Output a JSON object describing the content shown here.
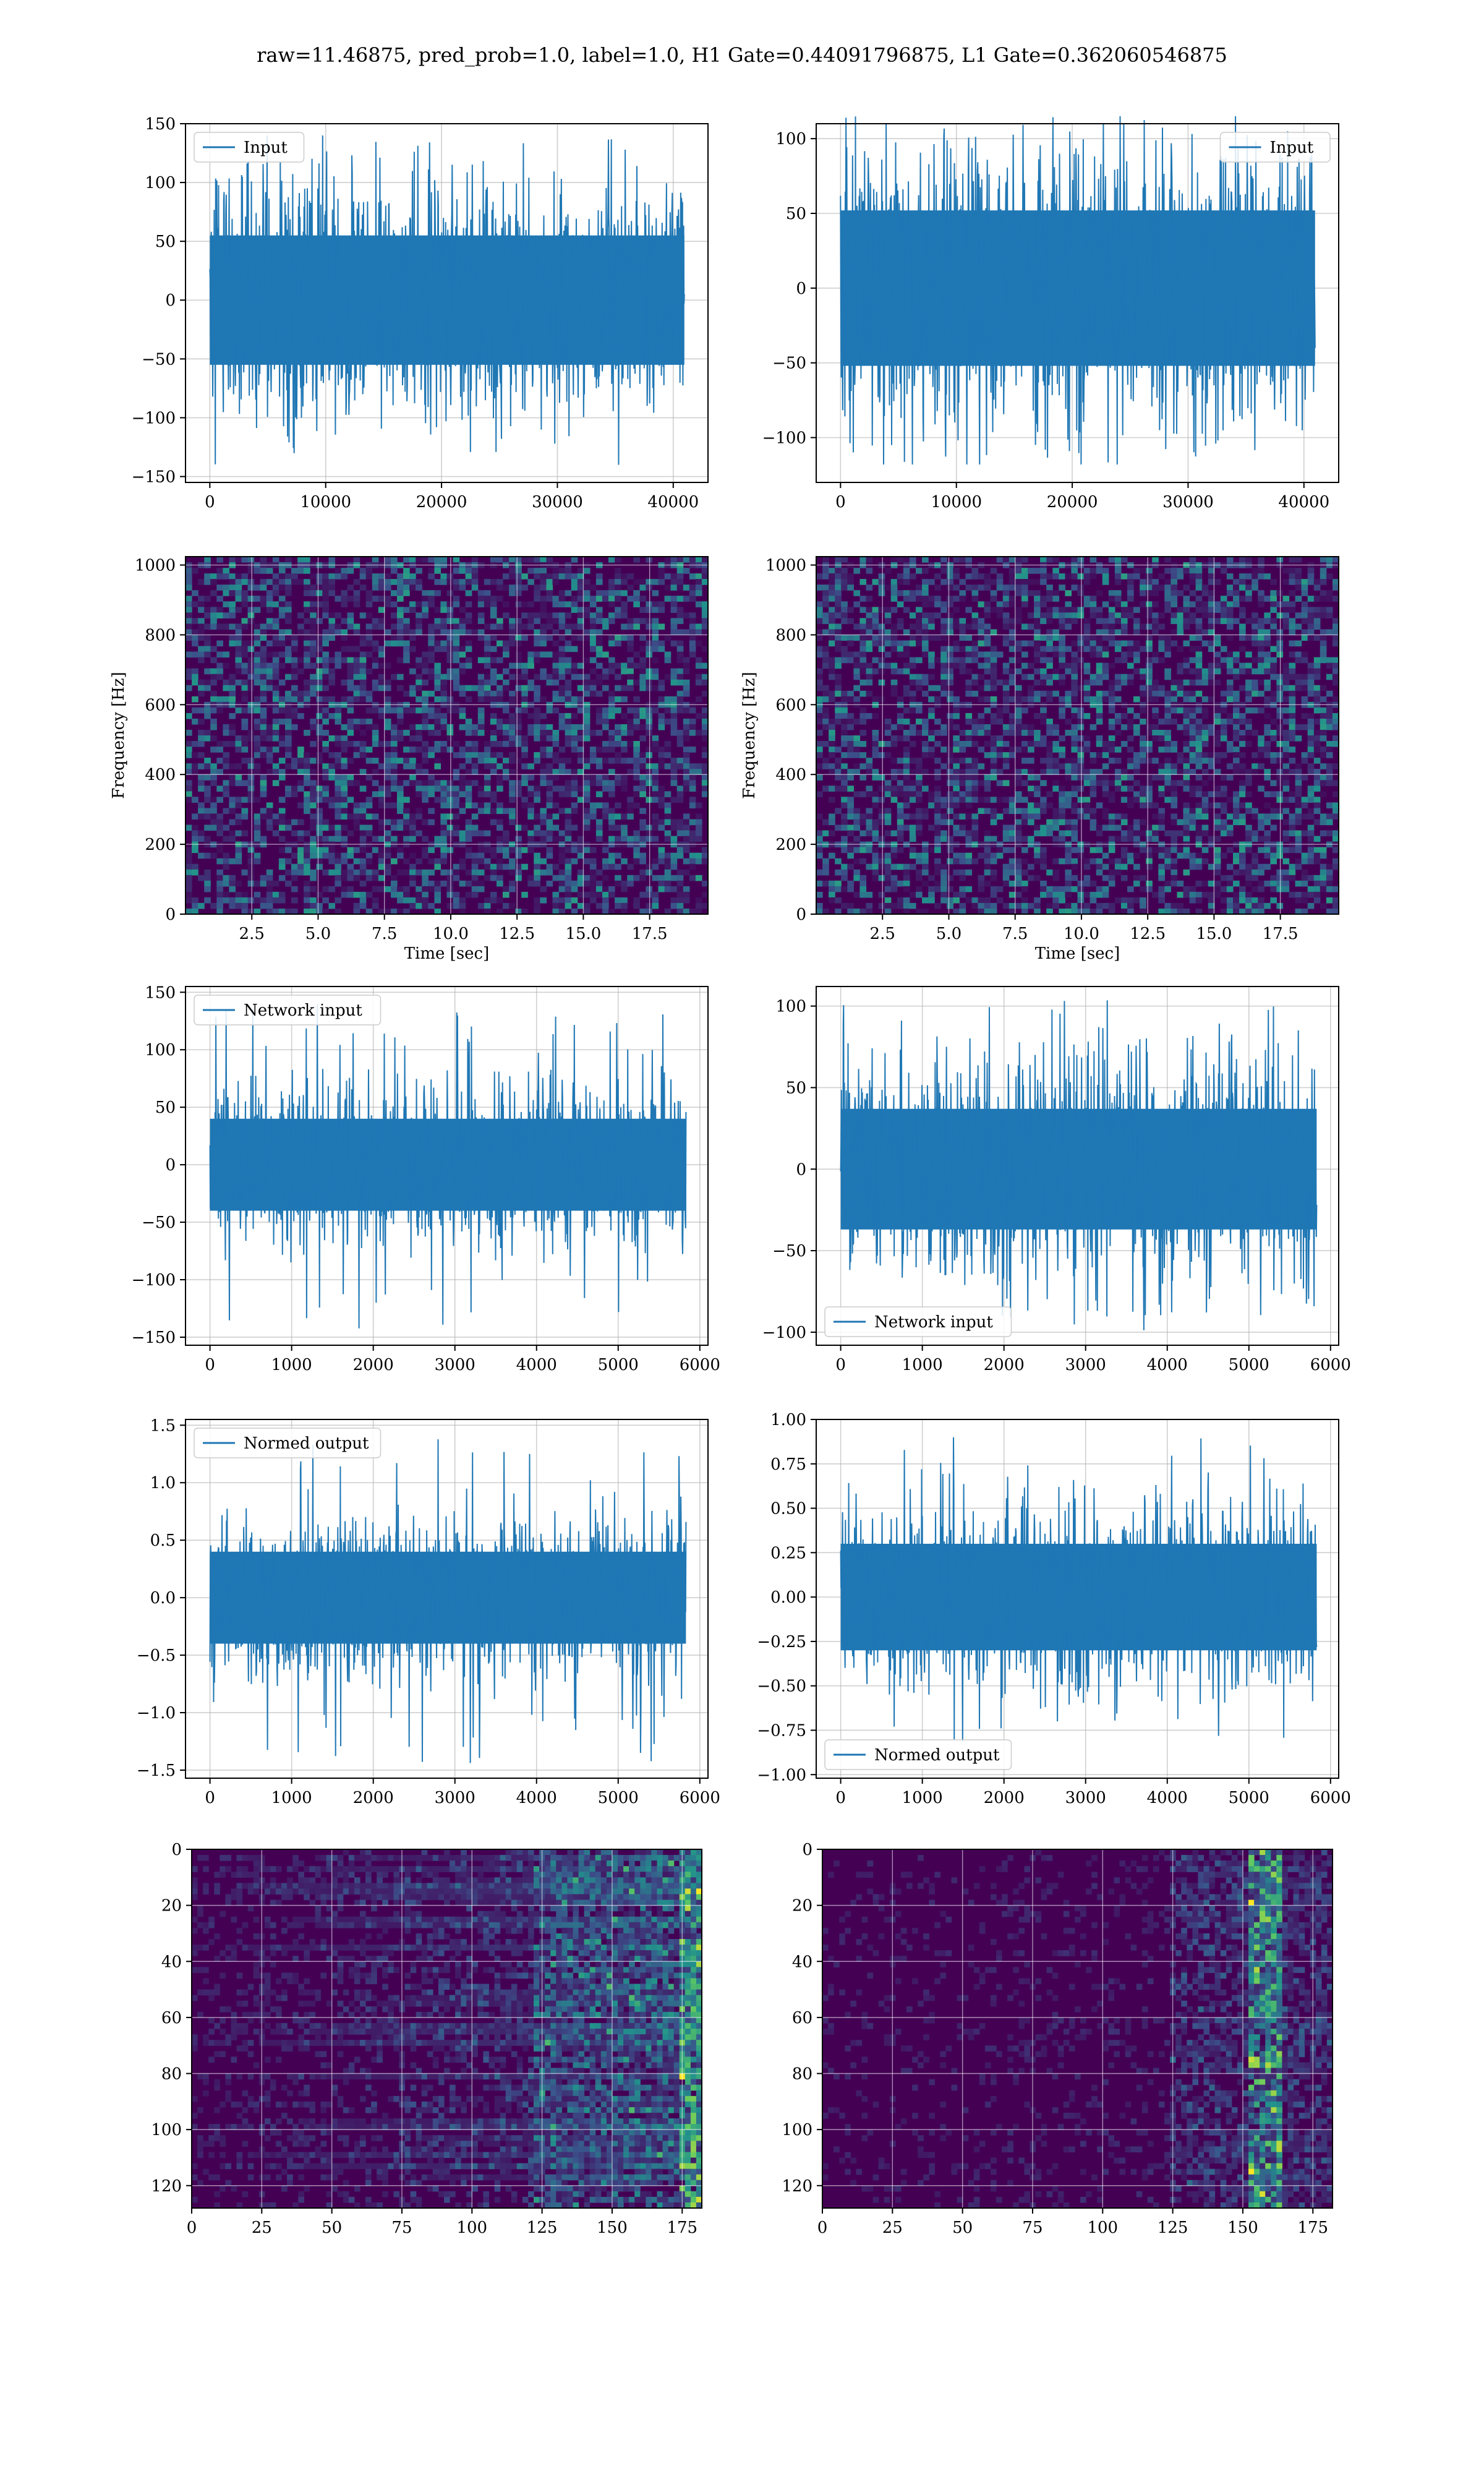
{
  "page": {
    "title": "raw=11.46875, pred_prob=1.0, label=1.0, H1 Gate=0.44091796875, L1 Gate=0.362060546875"
  },
  "colors": {
    "line": "#1f77b4",
    "grid": "#b0b0b0",
    "viridis_dark": "#440154",
    "viridis_mid": "#21918c",
    "viridis_bright": "#5ec962",
    "viridis_top": "#fde725"
  },
  "chart_data": [
    {
      "id": "h1-input",
      "type": "line",
      "series": [
        {
          "name": "Input",
          "x_range": [
            0,
            40960
          ],
          "amplitude": 55,
          "peak_range": [
            -140,
            140
          ]
        }
      ],
      "xlim": [
        -2100,
        43000
      ],
      "ylim": [
        -155,
        150
      ],
      "xticks": [
        0,
        10000,
        20000,
        30000,
        40000
      ],
      "xtick_labels": [
        "0",
        "10000",
        "20000",
        "30000",
        "40000"
      ],
      "yticks": [
        -150,
        -100,
        -50,
        0,
        50,
        100,
        150
      ],
      "ytick_labels": [
        "−150",
        "−100",
        "−50",
        "0",
        "50",
        "100",
        "150"
      ],
      "legend": "top-left",
      "grid": true,
      "xlabel": "",
      "ylabel": ""
    },
    {
      "id": "l1-input",
      "type": "line",
      "series": [
        {
          "name": "Input",
          "x_range": [
            0,
            40960
          ],
          "amplitude": 52,
          "peak_range": [
            -118,
            115
          ]
        }
      ],
      "xlim": [
        -2100,
        43000
      ],
      "ylim": [
        -130,
        110
      ],
      "xticks": [
        0,
        10000,
        20000,
        30000,
        40000
      ],
      "xtick_labels": [
        "0",
        "10000",
        "20000",
        "30000",
        "40000"
      ],
      "yticks": [
        -100,
        -50,
        0,
        50,
        100
      ],
      "ytick_labels": [
        "−100",
        "−50",
        "0",
        "50",
        "100"
      ],
      "legend": "top-right",
      "grid": true,
      "xlabel": "",
      "ylabel": ""
    },
    {
      "id": "h1-spectrogram",
      "type": "heatmap",
      "xlim": [
        0,
        19.7
      ],
      "ylim": [
        0,
        1024
      ],
      "xticks": [
        2.5,
        5.0,
        7.5,
        10.0,
        12.5,
        15.0,
        17.5
      ],
      "xtick_labels": [
        "2.5",
        "5.0",
        "7.5",
        "10.0",
        "12.5",
        "15.0",
        "17.5"
      ],
      "yticks": [
        0,
        200,
        400,
        600,
        800,
        1000
      ],
      "ytick_labels": [
        "0",
        "200",
        "400",
        "600",
        "800",
        "1000"
      ],
      "xlabel": "Time [sec]",
      "ylabel": "Frequency [Hz]",
      "grid": true
    },
    {
      "id": "l1-spectrogram",
      "type": "heatmap",
      "xlim": [
        0,
        19.7
      ],
      "ylim": [
        0,
        1024
      ],
      "xticks": [
        2.5,
        5.0,
        7.5,
        10.0,
        12.5,
        15.0,
        17.5
      ],
      "xtick_labels": [
        "2.5",
        "5.0",
        "7.5",
        "10.0",
        "12.5",
        "15.0",
        "17.5"
      ],
      "yticks": [
        0,
        200,
        400,
        600,
        800,
        1000
      ],
      "ytick_labels": [
        "0",
        "200",
        "400",
        "600",
        "800",
        "1000"
      ],
      "xlabel": "Time [sec]",
      "ylabel": "Frequency [Hz]",
      "grid": true
    },
    {
      "id": "h1-network-input",
      "type": "line",
      "series": [
        {
          "name": "Network input",
          "x_range": [
            0,
            5830
          ],
          "amplitude": 40,
          "peak_range": [
            -143,
            142
          ]
        }
      ],
      "xlim": [
        -300,
        6100
      ],
      "ylim": [
        -157,
        155
      ],
      "xticks": [
        0,
        1000,
        2000,
        3000,
        4000,
        5000,
        6000
      ],
      "xtick_labels": [
        "0",
        "1000",
        "2000",
        "3000",
        "4000",
        "5000",
        "6000"
      ],
      "yticks": [
        -150,
        -100,
        -50,
        0,
        50,
        100,
        150
      ],
      "ytick_labels": [
        "−150",
        "−100",
        "−50",
        "0",
        "50",
        "100",
        "150"
      ],
      "legend": "top-left",
      "grid": true,
      "xlabel": "",
      "ylabel": ""
    },
    {
      "id": "l1-network-input",
      "type": "line",
      "series": [
        {
          "name": "Network input",
          "x_range": [
            0,
            5830
          ],
          "amplitude": 37,
          "peak_range": [
            -106,
            104
          ]
        }
      ],
      "xlim": [
        -300,
        6100
      ],
      "ylim": [
        -108,
        112
      ],
      "xticks": [
        0,
        1000,
        2000,
        3000,
        4000,
        5000,
        6000
      ],
      "xtick_labels": [
        "0",
        "1000",
        "2000",
        "3000",
        "4000",
        "5000",
        "6000"
      ],
      "yticks": [
        -100,
        -50,
        0,
        50,
        100
      ],
      "ytick_labels": [
        "−100",
        "−50",
        "0",
        "50",
        "100"
      ],
      "legend": "bottom-left",
      "grid": true,
      "xlabel": "",
      "ylabel": ""
    },
    {
      "id": "h1-normed-output",
      "type": "line",
      "series": [
        {
          "name": "Normed output",
          "x_range": [
            0,
            5830
          ],
          "amplitude": 0.4,
          "peak_range": [
            -1.44,
            1.43
          ]
        }
      ],
      "xlim": [
        -300,
        6100
      ],
      "ylim": [
        -1.57,
        1.55
      ],
      "xticks": [
        0,
        1000,
        2000,
        3000,
        4000,
        5000,
        6000
      ],
      "xtick_labels": [
        "0",
        "1000",
        "2000",
        "3000",
        "4000",
        "5000",
        "6000"
      ],
      "yticks": [
        -1.5,
        -1.0,
        -0.5,
        0.0,
        0.5,
        1.0,
        1.5
      ],
      "ytick_labels": [
        "−1.5",
        "−1.0",
        "−0.5",
        "0.0",
        "0.5",
        "1.0",
        "1.5"
      ],
      "legend": "top-left",
      "grid": true,
      "xlabel": "",
      "ylabel": ""
    },
    {
      "id": "l1-normed-output",
      "type": "line",
      "series": [
        {
          "name": "Normed output",
          "x_range": [
            0,
            5830
          ],
          "amplitude": 0.3,
          "peak_range": [
            -0.82,
            0.9
          ]
        }
      ],
      "xlim": [
        -300,
        6100
      ],
      "ylim": [
        -1.02,
        1.0
      ],
      "xticks": [
        0,
        1000,
        2000,
        3000,
        4000,
        5000,
        6000
      ],
      "xtick_labels": [
        "0",
        "1000",
        "2000",
        "3000",
        "4000",
        "5000",
        "6000"
      ],
      "yticks": [
        -1.0,
        -0.75,
        -0.5,
        -0.25,
        0.0,
        0.25,
        0.5,
        0.75,
        1.0
      ],
      "ytick_labels": [
        "−1.00",
        "−0.75",
        "−0.50",
        "−0.25",
        "0.00",
        "0.25",
        "0.50",
        "0.75",
        "1.00"
      ],
      "legend": "bottom-left",
      "grid": true,
      "xlabel": "",
      "ylabel": ""
    },
    {
      "id": "h1-feature-map",
      "type": "heatmap",
      "rows": 128,
      "cols": 182,
      "xlim": [
        0,
        182
      ],
      "ylim": [
        128,
        0
      ],
      "xticks": [
        0,
        25,
        50,
        75,
        100,
        125,
        150,
        175
      ],
      "xtick_labels": [
        "0",
        "25",
        "50",
        "75",
        "100",
        "125",
        "150",
        "175"
      ],
      "yticks": [
        0,
        20,
        40,
        60,
        80,
        100,
        120
      ],
      "ytick_labels": [
        "0",
        "20",
        "40",
        "60",
        "80",
        "100",
        "120"
      ],
      "xlabel": "",
      "ylabel": "",
      "grid": true
    },
    {
      "id": "l1-feature-map",
      "type": "heatmap",
      "rows": 128,
      "cols": 182,
      "xlim": [
        0,
        182
      ],
      "ylim": [
        128,
        0
      ],
      "xticks": [
        0,
        25,
        50,
        75,
        100,
        125,
        150,
        175
      ],
      "xtick_labels": [
        "0",
        "25",
        "50",
        "75",
        "100",
        "125",
        "150",
        "175"
      ],
      "yticks": [
        0,
        20,
        40,
        60,
        80,
        100,
        120
      ],
      "ytick_labels": [
        "0",
        "20",
        "40",
        "60",
        "80",
        "100",
        "120"
      ],
      "xlabel": "",
      "ylabel": "",
      "grid": true
    }
  ]
}
